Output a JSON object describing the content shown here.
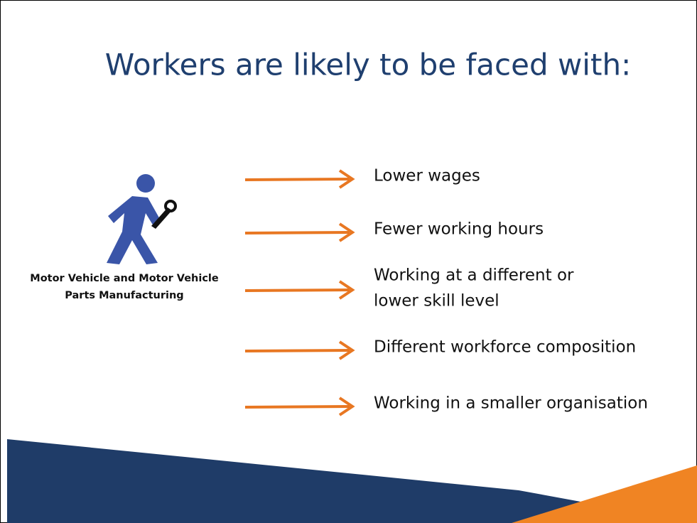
{
  "header": {
    "title": "Workers are likely to be faced with:"
  },
  "figure": {
    "label_lines": [
      "Motor Vehicle and Motor Vehicle",
      "Parts Manufacturing"
    ]
  },
  "items": [
    {
      "lines": [
        "Lower wages"
      ]
    },
    {
      "lines": [
        "Fewer working hours"
      ]
    },
    {
      "lines": [
        "Working at a different or",
        "lower skill level"
      ]
    },
    {
      "lines": [
        "Different workforce composition"
      ]
    },
    {
      "lines": [
        "Working in a smaller organisation"
      ]
    }
  ]
}
